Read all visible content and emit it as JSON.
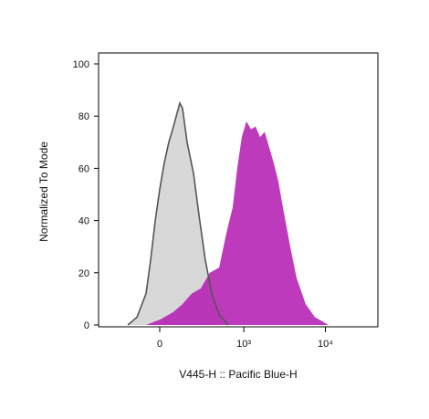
{
  "chart_data": {
    "type": "histogram-overlay",
    "xlabel": "V445-H :: Pacific Blue-H",
    "ylabel": "Normalized To Mode",
    "xscale": {
      "type": "asinh",
      "width": 190
    },
    "xlim": [
      -513,
      43700
    ],
    "xticks": [
      0,
      {
        "value": 1000,
        "label": "10³"
      },
      {
        "value": 10000,
        "label": "10⁴"
      }
    ],
    "ylim": [
      0,
      100
    ],
    "yticks": [
      0,
      20,
      40,
      60,
      80,
      100
    ],
    "series": [
      {
        "color": "#d8d8d8",
        "x": [
          -194,
          -130,
          -75,
          -49,
          -24,
          0,
          24,
          49,
          75,
          113,
          130,
          161,
          209,
          255,
          315,
          388,
          487,
          637
        ],
        "values": [
          0,
          3,
          12,
          25,
          40,
          52,
          62,
          70,
          76,
          85,
          83,
          70,
          58,
          42,
          25,
          12,
          4,
          0
        ]
      },
      {
        "color": "#b41fb4",
        "x": [
          -75,
          0,
          75,
          130,
          194,
          271,
          365,
          487,
          602,
          726,
          828,
          944,
          1077,
          1227,
          1397,
          1590,
          1809,
          2056,
          2339,
          2660,
          3027,
          3718,
          4446,
          5738,
          7429,
          10906
        ],
        "values": [
          0,
          2,
          5,
          8,
          12,
          14,
          20,
          22,
          35,
          45,
          60,
          72,
          78,
          75,
          76,
          72,
          74,
          68,
          62,
          55,
          45,
          30,
          18,
          8,
          3,
          0
        ]
      }
    ]
  }
}
